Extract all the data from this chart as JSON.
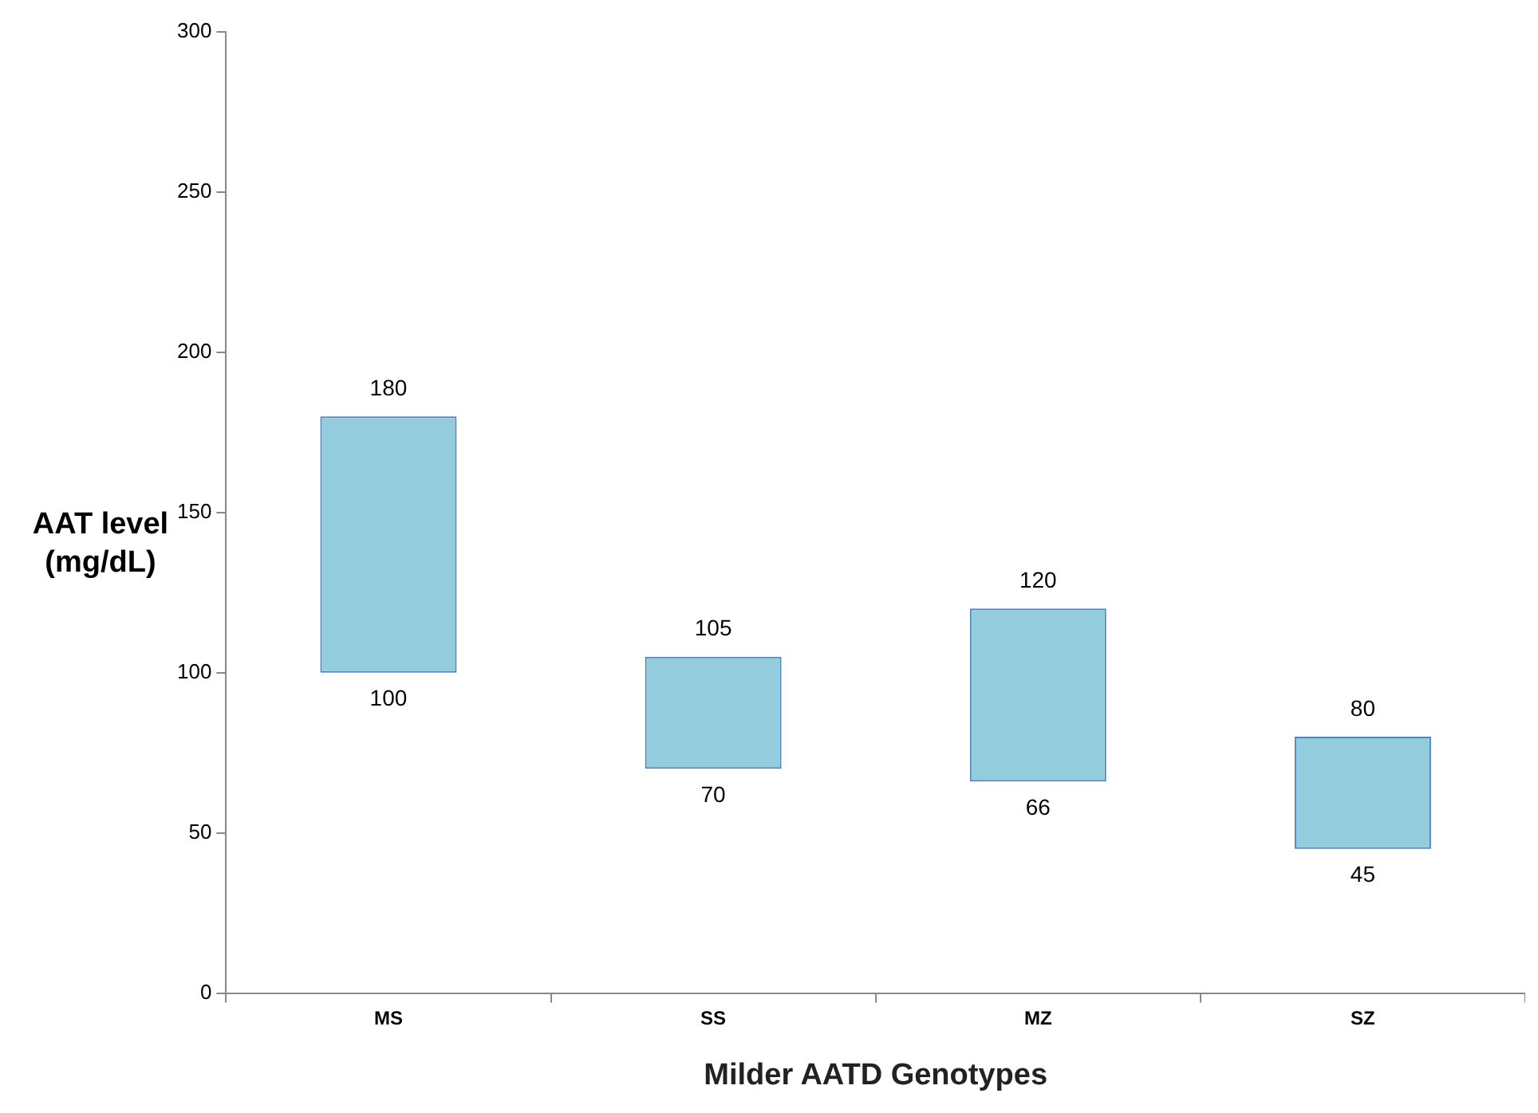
{
  "chart_data": {
    "type": "bar",
    "xlabel": "Milder AATD Genotypes",
    "ylabel": "AAT level\n(mg/dL)",
    "categories": [
      "MS",
      "SS",
      "MZ",
      "SZ"
    ],
    "values": [
      80,
      35,
      54,
      35
    ],
    "base": [
      100,
      70,
      66,
      45
    ],
    "color": "#93cddd",
    "ylim": [
      0,
      300
    ],
    "yticks": [
      0,
      50,
      100,
      150,
      200,
      250,
      300
    ],
    "grid": false,
    "legend": false,
    "annotations": [
      {
        "text": "180",
        "x": "MS",
        "y": 180
      },
      {
        "text": "100",
        "x": "MS",
        "y": 100
      },
      {
        "text": "105",
        "x": "SS",
        "y": 105
      },
      {
        "text": "70",
        "x": "SS",
        "y": 70
      },
      {
        "text": "120",
        "x": "MZ",
        "y": 120
      },
      {
        "text": "66",
        "x": "MZ",
        "y": 66
      },
      {
        "text": "80",
        "x": "SZ",
        "y": 80
      },
      {
        "text": "45",
        "x": "SZ",
        "y": 45
      }
    ]
  }
}
